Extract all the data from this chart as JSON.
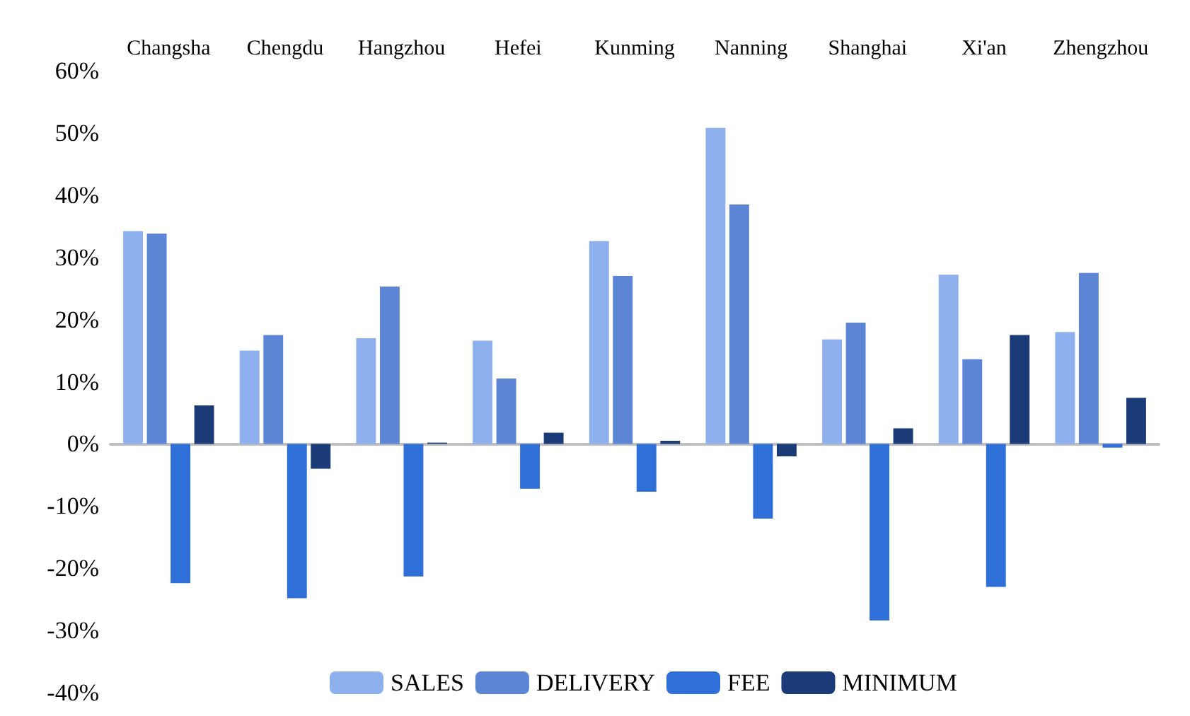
{
  "chart_data": {
    "type": "bar",
    "categories": [
      "Changsha",
      "Chengdu",
      "Hangzhou",
      "Hefei",
      "Kunming",
      "Nanning",
      "Shanghai",
      "Xi'an",
      "Zhengzhou"
    ],
    "series": [
      {
        "name": "SALES",
        "color": "#8fb0ef",
        "values": [
          34.2,
          15,
          17,
          16.6,
          32.6,
          50.8,
          16.8,
          27.2,
          18
        ]
      },
      {
        "name": "DELIVERY",
        "color": "#5c85d6",
        "values": [
          33.8,
          17.5,
          25.3,
          10.5,
          27,
          38.5,
          19.5,
          13.6,
          27.5
        ]
      },
      {
        "name": "FEE",
        "color": "#2e6fd8",
        "values": [
          -22.4,
          -24.8,
          -21.3,
          -7.2,
          -7.7,
          -12,
          -28.4,
          -23,
          -0.6
        ]
      },
      {
        "name": "MINIMUM",
        "color": "#1b3a78",
        "values": [
          6.2,
          -4,
          0.2,
          1.8,
          0.5,
          -2,
          2.5,
          17.5,
          7.4
        ]
      }
    ],
    "ylim": [
      -40,
      60
    ],
    "yticks": [
      {
        "value": -40,
        "label": "-40%"
      },
      {
        "value": -30,
        "label": "-30%"
      },
      {
        "value": -20,
        "label": "-20%"
      },
      {
        "value": -10,
        "label": "-10%"
      },
      {
        "value": 0,
        "label": "0%"
      },
      {
        "value": 10,
        "label": "10%"
      },
      {
        "value": 20,
        "label": "20%"
      },
      {
        "value": 30,
        "label": "30%"
      },
      {
        "value": 40,
        "label": "40%"
      },
      {
        "value": 50,
        "label": "50%"
      },
      {
        "value": 60,
        "label": "60%"
      }
    ],
    "legend": "bottom"
  }
}
